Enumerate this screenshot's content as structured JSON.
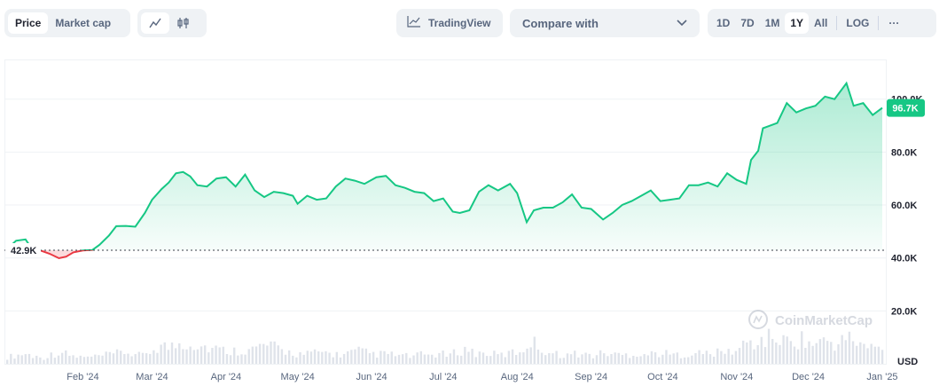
{
  "toolbar": {
    "view_tabs": [
      "Price",
      "Market cap"
    ],
    "active_view": "Price",
    "chart_style_icons": [
      "line-chart-icon",
      "candlestick-icon"
    ],
    "tradingview_label": "TradingView",
    "compare_label": "Compare with",
    "ranges": [
      "1D",
      "7D",
      "1M",
      "1Y",
      "All"
    ],
    "active_range": "1Y",
    "log_label": "LOG",
    "more_label": "···"
  },
  "colors": {
    "up": "#16c784",
    "down": "#ea3943",
    "grid": "#eff2f5",
    "text_muted": "#58667e"
  },
  "chart_data": {
    "type": "area",
    "currency_label": "USD",
    "watermark": "CoinMarketCap",
    "baseline_label": "42.9K",
    "baseline_value": 42900,
    "current_label": "96.7K",
    "current_value": 96700,
    "ylim": [
      0,
      115000
    ],
    "yticks": [
      {
        "value": 20000,
        "label": "20.0K"
      },
      {
        "value": 40000,
        "label": "40.0K"
      },
      {
        "value": 60000,
        "label": "60.0K"
      },
      {
        "value": 80000,
        "label": "80.0K"
      },
      {
        "value": 100000,
        "label": "100.0K"
      }
    ],
    "xticks": [
      "Feb '24",
      "Mar '24",
      "Apr '24",
      "May '24",
      "Jun '24",
      "Jul '24",
      "Aug '24",
      "Sep '24",
      "Oct '24",
      "Nov '24",
      "Dec '24",
      "Jan '25"
    ],
    "x_domain": [
      "2024-01-01",
      "2025-01-01"
    ],
    "series": [
      {
        "x": [
          "2024-01-01",
          "2024-01-04",
          "2024-01-08",
          "2024-01-11",
          "2024-01-14",
          "2024-01-18",
          "2024-01-22",
          "2024-01-25",
          "2024-01-28",
          "2024-02-01",
          "2024-02-05",
          "2024-02-08",
          "2024-02-12",
          "2024-02-15",
          "2024-02-19",
          "2024-02-23",
          "2024-02-27",
          "2024-03-01",
          "2024-03-05",
          "2024-03-08",
          "2024-03-11",
          "2024-03-14",
          "2024-03-17",
          "2024-03-20",
          "2024-03-24",
          "2024-03-28",
          "2024-04-01",
          "2024-04-05",
          "2024-04-09",
          "2024-04-13",
          "2024-04-17",
          "2024-04-21",
          "2024-04-25",
          "2024-04-29",
          "2024-05-01",
          "2024-05-05",
          "2024-05-09",
          "2024-05-13",
          "2024-05-17",
          "2024-05-21",
          "2024-05-25",
          "2024-05-29",
          "2024-06-03",
          "2024-06-07",
          "2024-06-11",
          "2024-06-15",
          "2024-06-19",
          "2024-06-23",
          "2024-06-27",
          "2024-07-01",
          "2024-07-05",
          "2024-07-08",
          "2024-07-12",
          "2024-07-16",
          "2024-07-20",
          "2024-07-24",
          "2024-07-29",
          "2024-08-01",
          "2024-08-05",
          "2024-08-08",
          "2024-08-12",
          "2024-08-16",
          "2024-08-20",
          "2024-08-24",
          "2024-08-28",
          "2024-09-01",
          "2024-09-06",
          "2024-09-10",
          "2024-09-14",
          "2024-09-18",
          "2024-09-22",
          "2024-09-26",
          "2024-09-30",
          "2024-10-04",
          "2024-10-08",
          "2024-10-12",
          "2024-10-16",
          "2024-10-20",
          "2024-10-24",
          "2024-10-28",
          "2024-11-01",
          "2024-11-05",
          "2024-11-07",
          "2024-11-10",
          "2024-11-12",
          "2024-11-15",
          "2024-11-18",
          "2024-11-22",
          "2024-11-26",
          "2024-11-30",
          "2024-12-04",
          "2024-12-08",
          "2024-12-12",
          "2024-12-17",
          "2024-12-20",
          "2024-12-24",
          "2024-12-28",
          "2025-01-01"
        ],
        "y": [
          44000,
          46500,
          47000,
          43000,
          42900,
          41600,
          39900,
          40500,
          42100,
          42800,
          43000,
          45000,
          48500,
          52000,
          52100,
          51800,
          57000,
          62000,
          66000,
          68500,
          72000,
          72500,
          70800,
          67500,
          67000,
          70000,
          70500,
          67000,
          71500,
          65500,
          63000,
          65000,
          64500,
          63500,
          60500,
          63500,
          62000,
          62500,
          67000,
          70000,
          69200,
          68000,
          70500,
          71000,
          67500,
          66500,
          65000,
          64500,
          61500,
          62500,
          57500,
          57000,
          58000,
          65000,
          67500,
          65500,
          68000,
          64500,
          53500,
          58000,
          59000,
          59000,
          61000,
          64000,
          59000,
          58500,
          54500,
          57000,
          60000,
          61500,
          63500,
          65500,
          61500,
          62000,
          62500,
          67500,
          67500,
          68500,
          67000,
          72000,
          69500,
          68000,
          77000,
          80500,
          89000,
          90000,
          91000,
          98500,
          95000,
          96500,
          97500,
          101000,
          100000,
          106000,
          97500,
          98500,
          94000,
          96700
        ]
      }
    ],
    "volume_bars": [
      0.2,
      0.25,
      0.3,
      0.22,
      0.18,
      0.28,
      0.35,
      0.24,
      0.2,
      0.19,
      0.22,
      0.26,
      0.3,
      0.35,
      0.28,
      0.24,
      0.4,
      0.55,
      0.48,
      0.6,
      0.62,
      0.58,
      0.5,
      0.45,
      0.4,
      0.38,
      0.42,
      0.4,
      0.52,
      0.55,
      0.44,
      0.36,
      0.3,
      0.28,
      0.32,
      0.35,
      0.3,
      0.26,
      0.33,
      0.38,
      0.32,
      0.28,
      0.3,
      0.26,
      0.24,
      0.22,
      0.28,
      0.26,
      0.3,
      0.24,
      0.38,
      0.44,
      0.3,
      0.32,
      0.28,
      0.26,
      0.34,
      0.36,
      0.7,
      0.48,
      0.35,
      0.28,
      0.26,
      0.3,
      0.28,
      0.24,
      0.32,
      0.3,
      0.26,
      0.28,
      0.3,
      0.28,
      0.32,
      0.3,
      0.26,
      0.28,
      0.3,
      0.32,
      0.3,
      0.34,
      0.36,
      0.4,
      0.65,
      0.6,
      0.72,
      0.8,
      0.68,
      0.62,
      0.75,
      0.58,
      0.62,
      0.7,
      0.55,
      0.78,
      0.68,
      0.52,
      0.48,
      0.45
    ]
  }
}
